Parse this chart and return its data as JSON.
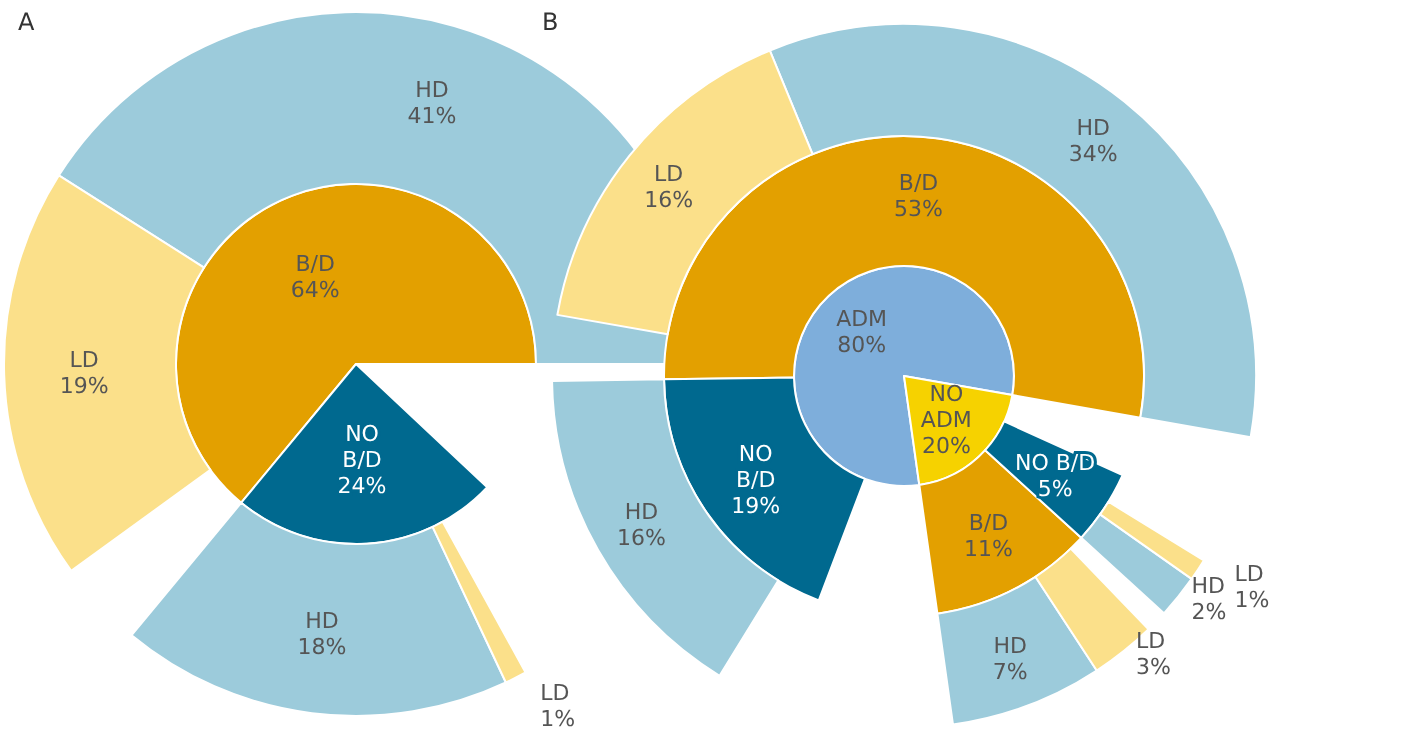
{
  "chart_data": [
    {
      "type": "other",
      "title": "A",
      "categories": [
        "B/D",
        "NO B/D",
        "HD",
        "LD",
        "HD",
        "LD"
      ],
      "values": [
        64,
        24,
        41,
        19,
        18,
        1
      ],
      "value_labels": [
        "64%",
        "24%",
        "41%",
        "19%",
        "18%",
        "1%"
      ],
      "colors": [
        "#e3a000",
        "#00698f",
        "#9ccbdb",
        "#fbe08a",
        "#9ccbdb",
        "#fbe08a"
      ]
    },
    {
      "type": "other",
      "title": "B",
      "categories": [
        "ADM",
        "NO ADM",
        "B/D",
        "NO B/D",
        "B/D",
        "NO B/D",
        "HD",
        "LD",
        "HD",
        "HD",
        "LD",
        "HD",
        "LD"
      ],
      "values": [
        80,
        20,
        53,
        19,
        11,
        5,
        34,
        16,
        16,
        7,
        3,
        2,
        1
      ],
      "value_labels": [
        "80%",
        "20%",
        "53%",
        "19%",
        "11%",
        "5%",
        "34%",
        "16%",
        "16%",
        "7%",
        "3%",
        "2%",
        "1%"
      ],
      "colors": [
        "#7eaedb",
        "#f6d200",
        "#e3a000",
        "#00698f",
        "#e3a000",
        "#00698f",
        "#9ccbdb",
        "#fbe08a",
        "#9ccbdb",
        "#9ccbdb",
        "#fbe08a",
        "#9ccbdb",
        "#fbe08a"
      ]
    }
  ]
}
